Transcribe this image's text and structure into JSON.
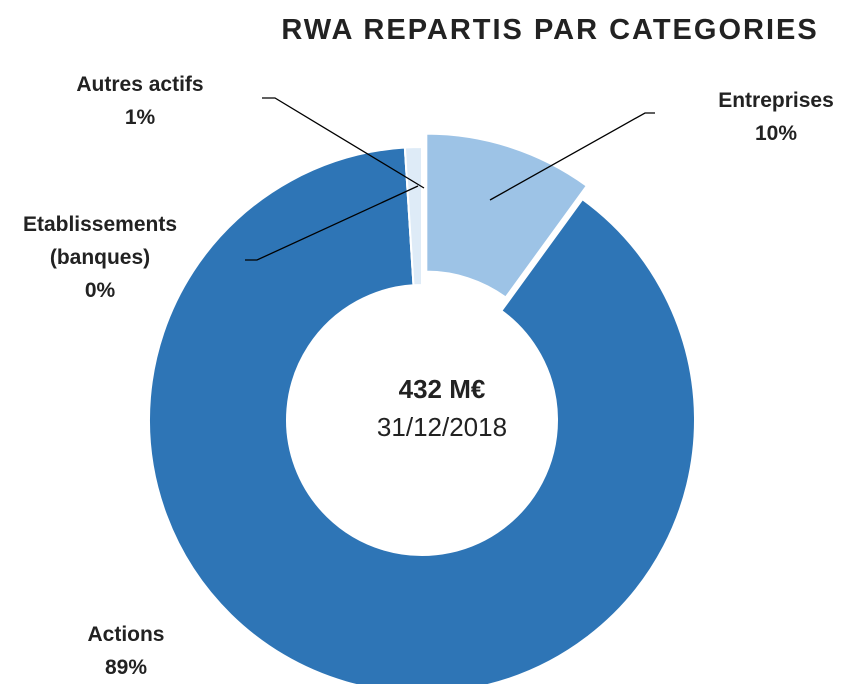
{
  "chart_data": {
    "type": "donut",
    "title": "RWA REPARTIS PAR CATEGORIES",
    "categories": [
      "Entreprises",
      "Actions",
      "Etablissements (banques)",
      "Autres actifs"
    ],
    "values": [
      10,
      89,
      0,
      1
    ],
    "value_labels": [
      "10%",
      "89%",
      "0%",
      "1%"
    ],
    "colors": [
      "#9dc3e6",
      "#2e75b6",
      "#bdd7ee",
      "#deebf7"
    ],
    "center_value": "432 M€",
    "center_date": "31/12/2018"
  }
}
